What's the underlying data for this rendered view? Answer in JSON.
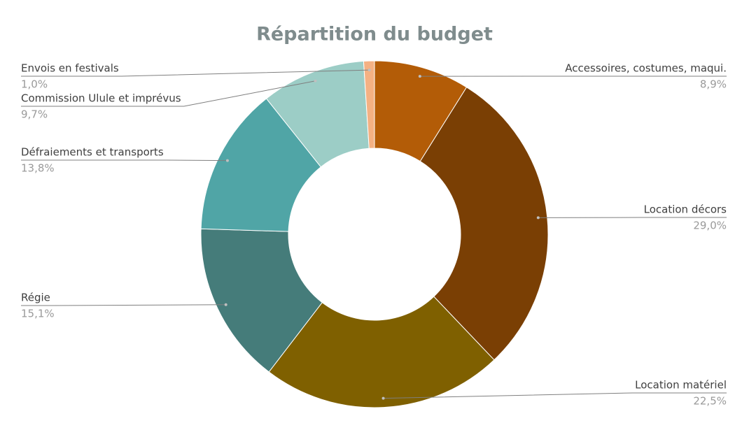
{
  "chart_data": {
    "type": "donut",
    "title": "Répartition du budget",
    "categories": [
      "Accessoires, costumes, maqui.",
      "Location décors",
      "Location matériel",
      "Régie",
      "Défraiements et transports",
      "Commission Ulule et imprévus",
      "Envois en festivals"
    ],
    "values": [
      8.9,
      29.0,
      22.5,
      15.1,
      13.8,
      9.7,
      1.0
    ],
    "value_labels": [
      "8,9%",
      "29,0%",
      "22,5%",
      "15,1%",
      "13,8%",
      "9,7%",
      "1,0%"
    ],
    "colors": [
      "#b35c07",
      "#7a3f04",
      "#7f6000",
      "#457c7a",
      "#50a5a6",
      "#9ccdc6",
      "#f4b183"
    ]
  }
}
